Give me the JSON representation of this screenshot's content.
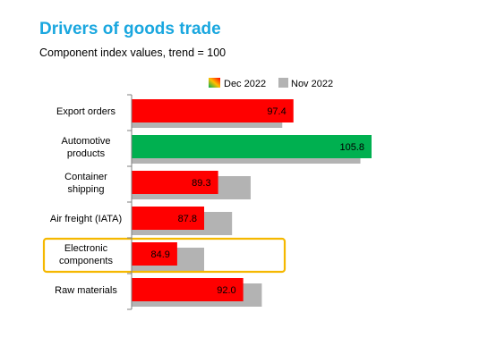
{
  "chart_data": {
    "type": "bar",
    "orientation": "horizontal",
    "title": "Drivers of goods trade",
    "subtitle": "Component index values, trend = 100",
    "categories": [
      "Export orders",
      "Automotive products",
      "Container shipping",
      "Air freight (IATA)",
      "Electronic components",
      "Raw materials"
    ],
    "category_lines": [
      [
        "Export orders"
      ],
      [
        "Automotive",
        "products"
      ],
      [
        "Container",
        "shipping"
      ],
      [
        "Air freight (IATA)"
      ],
      [
        "Electronic",
        "components"
      ],
      [
        "Raw materials"
      ]
    ],
    "series": [
      {
        "name": "Dec 2022",
        "values": [
          97.4,
          105.8,
          89.3,
          87.8,
          84.9,
          92.0
        ],
        "labels": [
          "97.4",
          "105.8",
          "89.3",
          "87.8",
          "84.9",
          "92.0"
        ],
        "colors": [
          "#ff0000",
          "#00b050",
          "#ff0000",
          "#ff0000",
          "#ff0000",
          "#ff0000"
        ]
      },
      {
        "name": "Nov 2022",
        "values": [
          96.2,
          104.6,
          92.8,
          90.8,
          87.8,
          94.0
        ],
        "color": "#b3b3b3"
      }
    ],
    "xlim": [
      80,
      110
    ],
    "highlight_category": "Electronic components",
    "highlight_color": "#f5b800",
    "legend_placement": "top-right",
    "grid": false
  }
}
